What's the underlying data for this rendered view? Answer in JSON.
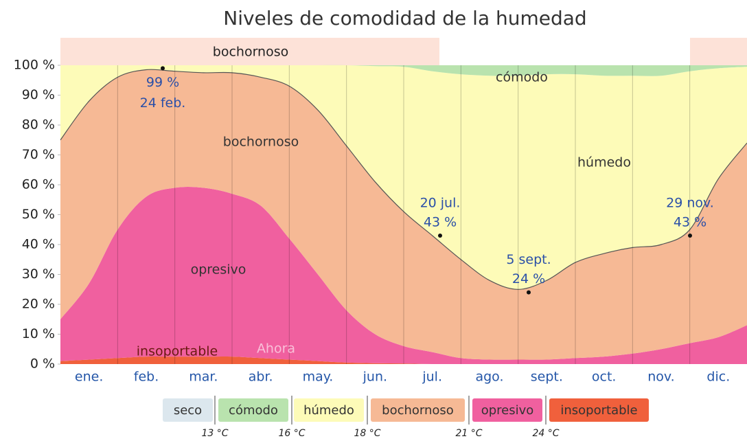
{
  "chart_data": {
    "type": "area",
    "stacked": true,
    "title": "Niveles de comodidad de la humedad",
    "categories": [
      null,
      "ene.",
      null,
      "feb.",
      null,
      "mar.",
      null,
      "abr.",
      null,
      "may.",
      null,
      "jun.",
      null,
      "jul.",
      null,
      "ago.",
      null,
      "sept.",
      null,
      "oct.",
      null,
      "nov.",
      null,
      "dic.",
      null
    ],
    "series": [
      {
        "name": "seco",
        "color": "#dce7ee",
        "values": [
          0,
          0,
          0,
          0,
          0,
          0,
          0,
          0,
          0,
          0,
          0,
          0,
          0,
          0,
          0,
          0,
          0,
          0,
          0,
          0,
          0,
          0,
          0,
          0,
          0
        ]
      },
      {
        "name": "cómodo",
        "color": "#b9e3ae",
        "values": [
          0,
          0,
          0,
          0,
          0,
          0,
          0,
          0,
          0,
          0,
          0,
          0.3,
          0.5,
          2,
          3,
          3.5,
          3.5,
          3,
          3,
          3.5,
          3.5,
          3.5,
          2,
          1,
          0.5
        ]
      },
      {
        "name": "húmedo",
        "color": "#fdfbb8",
        "values": [
          25,
          12,
          4,
          1.5,
          2,
          2.5,
          2.5,
          4,
          7,
          15,
          27,
          38.7,
          48.5,
          55,
          62,
          68.5,
          71.5,
          69,
          63,
          59.5,
          57.5,
          56.5,
          53,
          37,
          25.5
        ]
      },
      {
        "name": "bochornoso",
        "color": "#f6b995",
        "values": [
          60,
          61,
          51,
          42.5,
          39,
          38.5,
          40.5,
          43,
          51,
          55,
          55,
          51,
          45,
          39,
          33,
          26.5,
          23.5,
          26.5,
          32,
          34.5,
          35.5,
          35,
          38,
          53,
          61
        ]
      },
      {
        "name": "opresivo",
        "color": "#f0609f",
        "values": [
          14,
          25.5,
          43,
          53.5,
          56.5,
          56.5,
          54.5,
          51,
          40.5,
          29,
          17.5,
          9.7,
          5.8,
          4,
          2,
          1.5,
          1.5,
          1.5,
          2,
          2.5,
          3.5,
          5,
          7,
          9,
          13
        ]
      },
      {
        "name": "insoportable",
        "color": "#f0603c",
        "values": [
          1,
          1.5,
          2,
          2.5,
          2.5,
          2.5,
          2.5,
          2,
          1.5,
          1,
          0.5,
          0.3,
          0.2,
          0,
          0,
          0,
          0,
          0,
          0,
          0,
          0,
          0,
          0,
          0,
          0
        ]
      }
    ],
    "ylim": [
      0,
      100
    ],
    "yticks": [
      {
        "value": 0,
        "label": "0 %"
      },
      {
        "value": 10,
        "label": "10 %"
      },
      {
        "value": 20,
        "label": "20 %"
      },
      {
        "value": 30,
        "label": "30 %"
      },
      {
        "value": 40,
        "label": "40 %"
      },
      {
        "value": 50,
        "label": "50 %"
      },
      {
        "value": 60,
        "label": "60 %"
      },
      {
        "value": 70,
        "label": "70 %"
      },
      {
        "value": 80,
        "label": "80 %"
      },
      {
        "value": 90,
        "label": "90 %"
      },
      {
        "value": 100,
        "label": "100 %"
      }
    ],
    "band_label": "bochornoso",
    "band_color": "#fde2d8",
    "line_color": "#555555",
    "region_labels": [
      "bochornoso",
      "cómodo",
      "húmedo",
      "opresivo",
      "insoportable",
      "Ahora"
    ],
    "annotations": [
      {
        "date": "24 feb.",
        "value": 99,
        "label": "99 %"
      },
      {
        "date": "20 jul.",
        "value": 43,
        "label": "43 %"
      },
      {
        "date": "5 sept.",
        "value": 24,
        "label": "24 %"
      },
      {
        "date": "29 nov.",
        "value": 43,
        "label": "43 %"
      }
    ],
    "thresholds": [
      "13 °C",
      "16 °C",
      "18 °C",
      "21 °C",
      "24 °C"
    ]
  }
}
